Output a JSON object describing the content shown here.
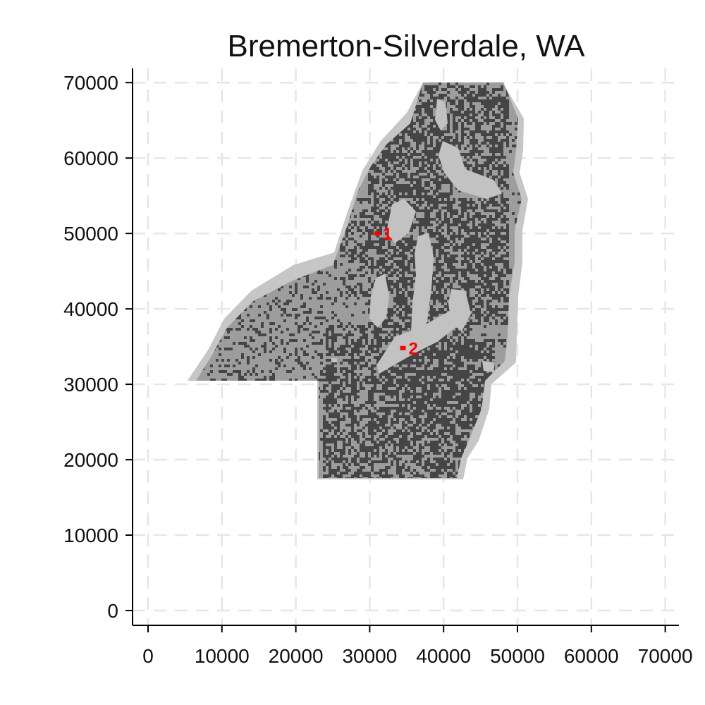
{
  "chart_data": {
    "type": "map",
    "title": "Bremerton-Silverdale, WA",
    "xlim": [
      0,
      72000
    ],
    "ylim": [
      0,
      72000
    ],
    "x_ticks": [
      0,
      10000,
      20000,
      30000,
      40000,
      50000,
      60000,
      70000
    ],
    "y_ticks": [
      0,
      10000,
      20000,
      30000,
      40000,
      50000,
      60000,
      70000
    ],
    "x_tick_labels": [
      "0",
      "10000",
      "20000",
      "30000",
      "40000",
      "50000",
      "60000",
      "70000"
    ],
    "y_tick_labels": [
      "0",
      "10000",
      "20000",
      "30000",
      "40000",
      "50000",
      "60000",
      "70000"
    ],
    "grid": true,
    "markers": [
      {
        "label": "1",
        "x": 31000,
        "y": 50000
      },
      {
        "label": "2",
        "x": 34500,
        "y": 34800
      }
    ],
    "colors": {
      "outer_buffer": "#c6c6c6",
      "land": "#9d9d9d",
      "developed": "#454545",
      "water": "#c2c2c2",
      "marker": "#ff0000"
    }
  }
}
